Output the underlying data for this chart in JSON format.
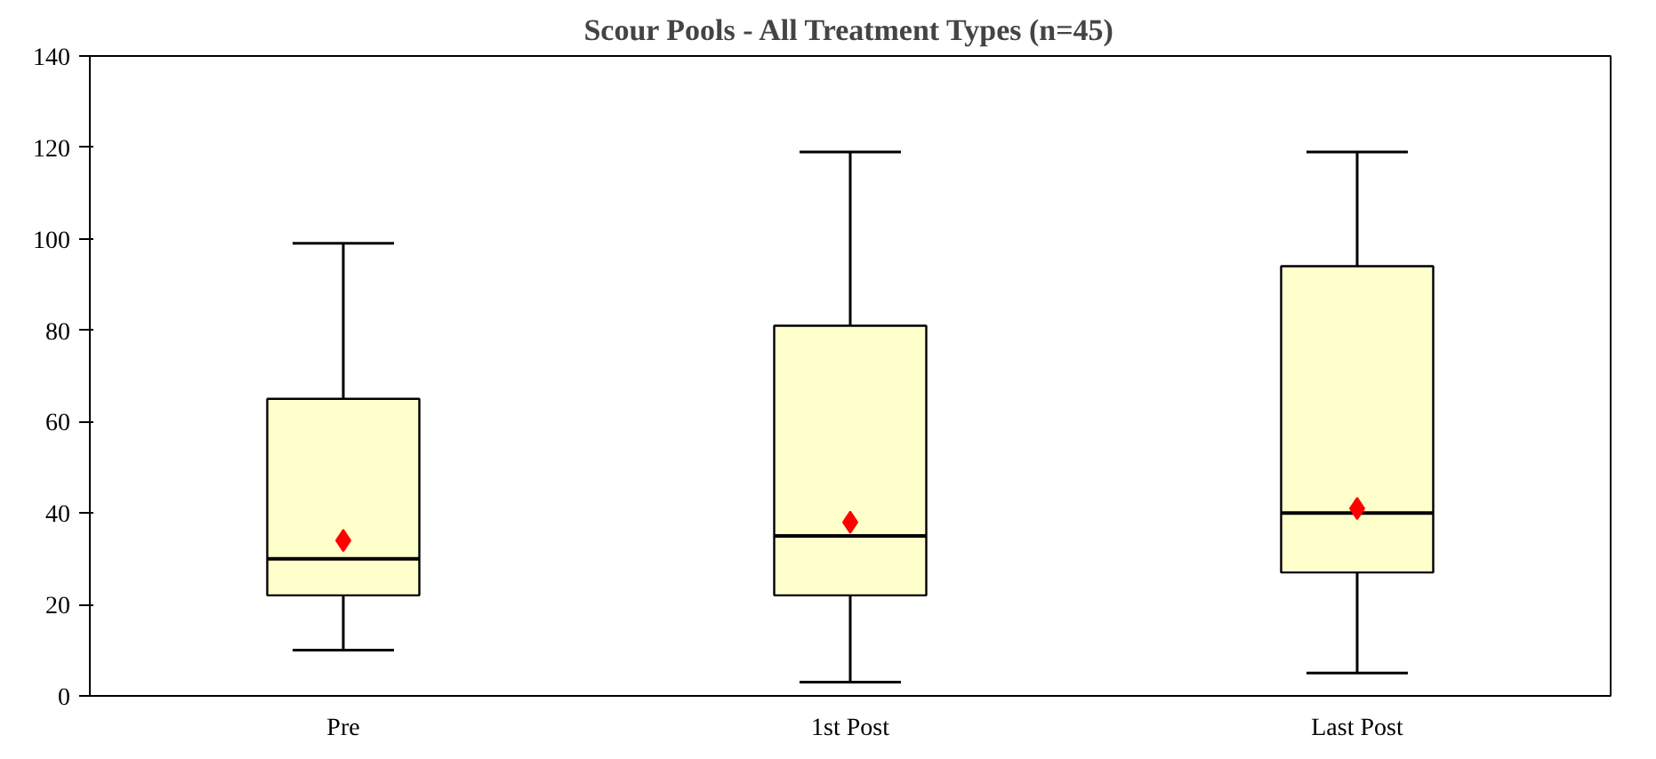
{
  "chart_data": {
    "type": "box",
    "title": "Scour Pools - All Treatment Types (n=45)",
    "categories": [
      "Pre",
      "1st Post",
      "Last Post"
    ],
    "series": [
      {
        "color": "#ffffcc",
        "boxes": [
          {
            "low": 10,
            "q1": 22,
            "median": 30,
            "q3": 65,
            "high": 99,
            "mean": 34
          },
          {
            "low": 3,
            "q1": 22,
            "median": 35,
            "q3": 81,
            "high": 119,
            "mean": 38
          },
          {
            "low": 5,
            "q1": 27,
            "median": 40,
            "q3": 94,
            "high": 119,
            "mean": 41
          }
        ]
      }
    ],
    "marker": "diamond",
    "ylim": [
      0,
      140
    ],
    "yticks": [
      0,
      20,
      40,
      60,
      80,
      100,
      120,
      140
    ],
    "grid": false
  }
}
